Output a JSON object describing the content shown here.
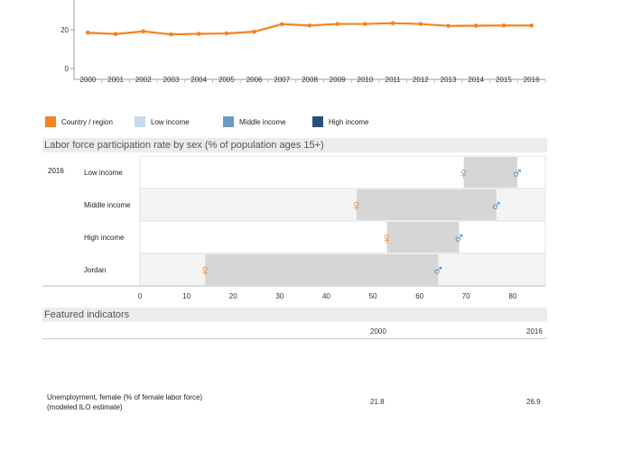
{
  "chart_data": [
    {
      "type": "line",
      "x": [
        2000,
        2001,
        2002,
        2003,
        2004,
        2005,
        2006,
        2007,
        2008,
        2009,
        2010,
        2011,
        2012,
        2013,
        2014,
        2015,
        2016
      ],
      "series": [
        {
          "values": [
            18.5,
            17.8,
            19.2,
            17.6,
            17.9,
            18.1,
            19.0,
            22.9,
            22.2,
            23.0,
            23.0,
            23.4,
            23.0,
            22.0,
            22.1,
            22.2,
            22.2
          ],
          "color": "#f58220"
        }
      ],
      "y_ticks": [
        "0",
        "20"
      ],
      "ylim": [
        0,
        40
      ],
      "grid": false
    },
    {
      "type": "scatter",
      "title": "Labor force participation rate by sex (% of population ages 15+)",
      "year_label": "2016",
      "categories": [
        "Low income",
        "Middle income",
        "High income",
        "Jordan"
      ],
      "female": [
        69.5,
        46.5,
        53.0,
        14.0
      ],
      "male": [
        81.0,
        76.5,
        68.5,
        64.0
      ],
      "x_ticks": [
        "0",
        "10",
        "20",
        "30",
        "40",
        "50",
        "60",
        "70",
        "80"
      ],
      "xlim": [
        0,
        87
      ]
    }
  ],
  "legend": [
    {
      "label": "Country / region",
      "color": "#f58220"
    },
    {
      "label": "Low income",
      "color": "#c6dbef"
    },
    {
      "label": "Middle income",
      "color": "#6c9bc8"
    },
    {
      "label": "High income",
      "color": "#2a4f7c"
    }
  ],
  "symbols": {
    "female": "♀",
    "male": "♂",
    "female_color": "#f58220",
    "male_color": "#2e7dc0"
  },
  "featured": {
    "heading": "Featured indicators",
    "columns": [
      "2000",
      "2016"
    ],
    "rows": [
      {
        "label_line1": "Unemployment, female (% of female labor force)",
        "label_line2": "(modeled ILO estimate)",
        "v2000": "21.8",
        "v2016": "26.9"
      }
    ]
  }
}
